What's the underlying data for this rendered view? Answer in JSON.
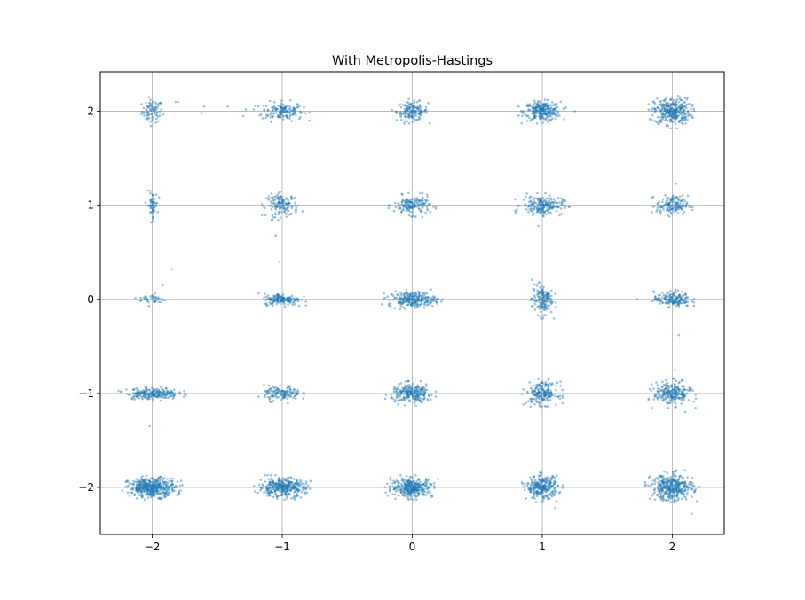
{
  "chart_data": {
    "type": "scatter",
    "title": "With Metropolis-Hastings",
    "xlabel": "",
    "ylabel": "",
    "xlim": [
      -2.4,
      2.4
    ],
    "ylim": [
      -2.5,
      2.42
    ],
    "xticks": [
      -2,
      -1,
      0,
      1,
      2
    ],
    "yticks": [
      -2,
      -1,
      0,
      1,
      2
    ],
    "xtick_labels": [
      "−2",
      "−1",
      "0",
      "1",
      "2"
    ],
    "ytick_labels": [
      "−2",
      "−1",
      "0",
      "1",
      "2"
    ],
    "grid": true,
    "legend": "none",
    "marker_color": "#1f77b4",
    "marker_alpha": 0.45,
    "series": [
      {
        "clusters": [
          {
            "x": -2,
            "y": 2,
            "count": 80,
            "sx": 0.04,
            "sy": 0.06,
            "outliers": [
              [
                -1.6,
                2.05
              ],
              [
                -1.62,
                1.98
              ],
              [
                -1.42,
                2.05
              ],
              [
                -1.8,
                2.1
              ],
              [
                -1.82,
                2.1
              ]
            ]
          },
          {
            "x": -1,
            "y": 2,
            "count": 150,
            "sx": 0.08,
            "sy": 0.05,
            "outliers": [
              [
                -1.28,
                2.02
              ],
              [
                -1.3,
                1.95
              ],
              [
                -1.22,
                2.02
              ]
            ]
          },
          {
            "x": 0,
            "y": 2,
            "count": 150,
            "sx": 0.06,
            "sy": 0.05,
            "outliers": []
          },
          {
            "x": 1,
            "y": 2,
            "count": 260,
            "sx": 0.07,
            "sy": 0.05,
            "outliers": [
              [
                1.25,
                2.0
              ]
            ]
          },
          {
            "x": 2,
            "y": 2,
            "count": 320,
            "sx": 0.07,
            "sy": 0.07,
            "outliers": []
          },
          {
            "x": -2,
            "y": 1,
            "count": 60,
            "sx": 0.02,
            "sy": 0.07,
            "outliers": []
          },
          {
            "x": -1,
            "y": 1,
            "count": 140,
            "sx": 0.06,
            "sy": 0.06,
            "outliers": [
              [
                -1.05,
                0.68
              ]
            ]
          },
          {
            "x": 0,
            "y": 1,
            "count": 160,
            "sx": 0.07,
            "sy": 0.05,
            "outliers": []
          },
          {
            "x": 1,
            "y": 1,
            "count": 200,
            "sx": 0.08,
            "sy": 0.05,
            "outliers": [
              [
                0.97,
                0.78
              ]
            ]
          },
          {
            "x": 2,
            "y": 1,
            "count": 150,
            "sx": 0.06,
            "sy": 0.05,
            "outliers": [
              [
                2.03,
                1.23
              ]
            ]
          },
          {
            "x": -2,
            "y": 0,
            "count": 40,
            "sx": 0.05,
            "sy": 0.03,
            "outliers": [
              [
                -1.85,
                0.32
              ],
              [
                -1.92,
                0.15
              ]
            ]
          },
          {
            "x": -1,
            "y": 0,
            "count": 160,
            "sx": 0.07,
            "sy": 0.03,
            "outliers": [
              [
                -1.02,
                0.4
              ],
              [
                -0.87,
                -0.07
              ]
            ]
          },
          {
            "x": 0,
            "y": 0,
            "count": 240,
            "sx": 0.09,
            "sy": 0.04,
            "outliers": [
              [
                -0.18,
                -0.05
              ]
            ]
          },
          {
            "x": 1,
            "y": 0,
            "count": 150,
            "sx": 0.04,
            "sy": 0.08,
            "outliers": []
          },
          {
            "x": 2,
            "y": 0,
            "count": 160,
            "sx": 0.07,
            "sy": 0.04,
            "outliers": [
              [
                1.73,
                0.0
              ],
              [
                2.05,
                -0.38
              ]
            ]
          },
          {
            "x": -2,
            "y": -1,
            "count": 220,
            "sx": 0.1,
            "sy": 0.03,
            "outliers": []
          },
          {
            "x": -1,
            "y": -1,
            "count": 130,
            "sx": 0.07,
            "sy": 0.04,
            "outliers": []
          },
          {
            "x": 0,
            "y": -1,
            "count": 240,
            "sx": 0.08,
            "sy": 0.05,
            "outliers": []
          },
          {
            "x": 1,
            "y": -1,
            "count": 190,
            "sx": 0.06,
            "sy": 0.06,
            "outliers": []
          },
          {
            "x": 2,
            "y": -1,
            "count": 240,
            "sx": 0.07,
            "sy": 0.06,
            "outliers": [
              [
                2.1,
                -1.2
              ],
              [
                2.02,
                -0.75
              ]
            ]
          },
          {
            "x": -2,
            "y": -2,
            "count": 420,
            "sx": 0.09,
            "sy": 0.05,
            "outliers": [
              [
                -2.02,
                -1.35
              ]
            ]
          },
          {
            "x": -1,
            "y": -2,
            "count": 340,
            "sx": 0.09,
            "sy": 0.05,
            "outliers": []
          },
          {
            "x": 0,
            "y": -2,
            "count": 320,
            "sx": 0.08,
            "sy": 0.05,
            "outliers": []
          },
          {
            "x": 1,
            "y": -2,
            "count": 260,
            "sx": 0.06,
            "sy": 0.06,
            "outliers": [
              [
                1.1,
                -2.22
              ]
            ]
          },
          {
            "x": 2,
            "y": -2,
            "count": 360,
            "sx": 0.08,
            "sy": 0.07,
            "outliers": [
              [
                2.15,
                -2.28
              ]
            ]
          }
        ]
      }
    ]
  }
}
